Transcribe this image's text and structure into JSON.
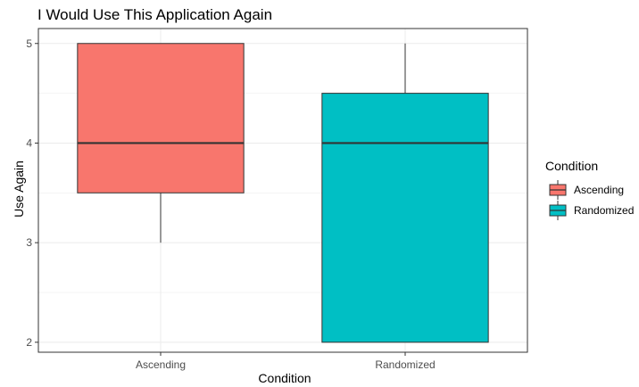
{
  "chart_data": {
    "type": "boxplot",
    "title": "I Would Use This Application Again",
    "xlabel": "Condition",
    "ylabel": "Use Again",
    "categories": [
      "Ascending",
      "Randomized"
    ],
    "ylim": [
      1.9,
      5.15
    ],
    "yticks": [
      2,
      3,
      4,
      5
    ],
    "grid": true,
    "legend": {
      "title": "Condition",
      "position": "right",
      "entries": [
        "Ascending",
        "Randomized"
      ]
    },
    "series": [
      {
        "name": "Ascending",
        "color": "#F8766D",
        "min": 3,
        "q1": 3.5,
        "median": 4,
        "q3": 5,
        "max": 5
      },
      {
        "name": "Randomized",
        "color": "#00BFC4",
        "min": 2,
        "q1": 2,
        "median": 4,
        "q3": 4.5,
        "max": 5
      }
    ]
  }
}
